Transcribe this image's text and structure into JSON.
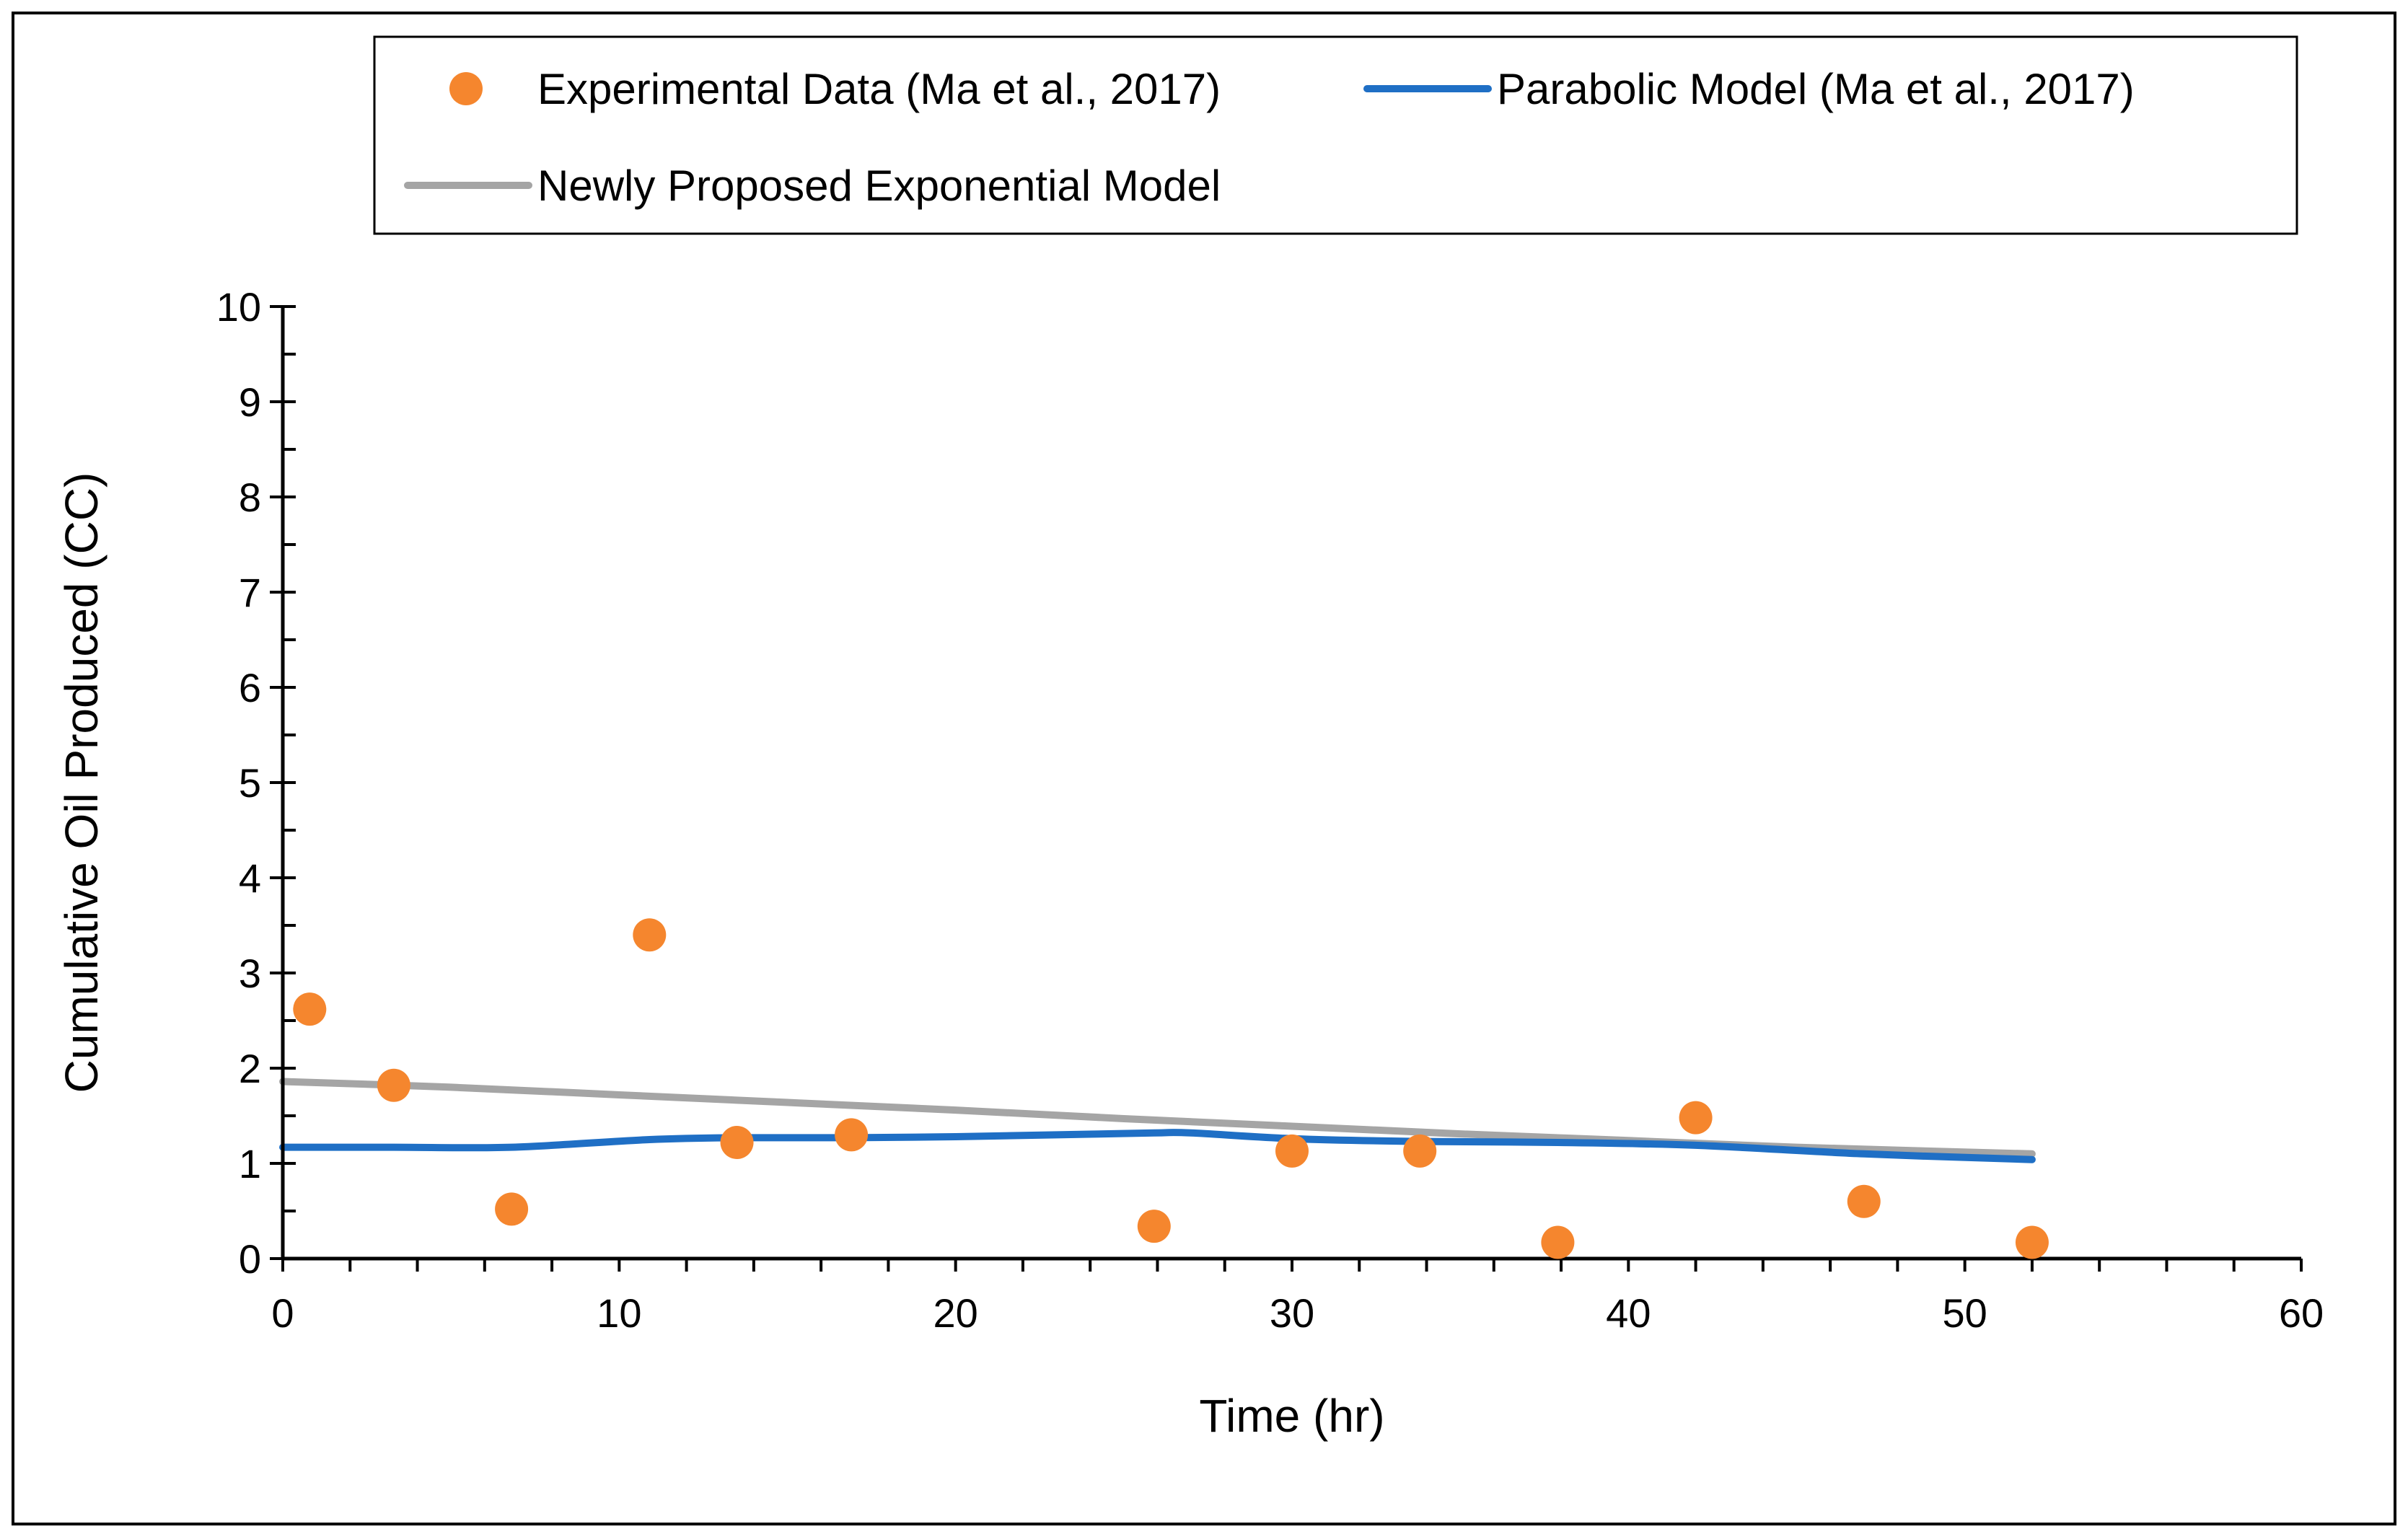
{
  "chart_data": {
    "type": "scatter",
    "title": "",
    "xlabel": "Time (hr)",
    "ylabel": "Cumulative Oil Produced (CC)",
    "xlim": [
      0,
      60
    ],
    "ylim": [
      0,
      10
    ],
    "xticks": [
      0,
      10,
      20,
      30,
      40,
      50,
      60
    ],
    "yticks": [
      0,
      1,
      2,
      3,
      4,
      5,
      6,
      7,
      8,
      9,
      10
    ],
    "x_minor_step": 2,
    "y_minor_step": 0.5,
    "grid": false,
    "legend_position": "top",
    "series": [
      {
        "name": "Experimental Data (Ma et al., 2017)",
        "kind": "scatter",
        "color": "#F5862E",
        "x": [
          0.8,
          3.3,
          6.8,
          10.9,
          13.5,
          16.9,
          25.9,
          30.0,
          33.8,
          37.9,
          42.0,
          47.0,
          52.0
        ],
        "y": [
          2.62,
          1.82,
          0.52,
          3.4,
          1.22,
          1.3,
          0.34,
          1.13,
          1.13,
          0.17,
          1.48,
          0.6,
          0.17
        ]
      },
      {
        "name": "Parabolic Model (Ma et al., 2017)",
        "kind": "line",
        "color": "#1F6FC5",
        "x": [
          0,
          3.3,
          6.8,
          10.9,
          13.5,
          16.9,
          20,
          23,
          25.9,
          27,
          30.0,
          33.8,
          37.9,
          42.0,
          47.0,
          52.0
        ],
        "y": [
          1.17,
          1.17,
          1.17,
          1.25,
          1.27,
          1.27,
          1.28,
          1.3,
          1.32,
          1.32,
          1.26,
          1.23,
          1.22,
          1.19,
          1.1,
          1.04
        ]
      },
      {
        "name": "Newly Proposed Exponential Model",
        "kind": "line",
        "color": "#A5A5A5",
        "x": [
          0,
          5,
          10,
          15,
          20,
          25,
          30,
          35,
          40,
          45,
          52
        ],
        "y": [
          1.86,
          1.8,
          1.72,
          1.64,
          1.56,
          1.47,
          1.39,
          1.31,
          1.24,
          1.17,
          1.1
        ]
      }
    ]
  }
}
